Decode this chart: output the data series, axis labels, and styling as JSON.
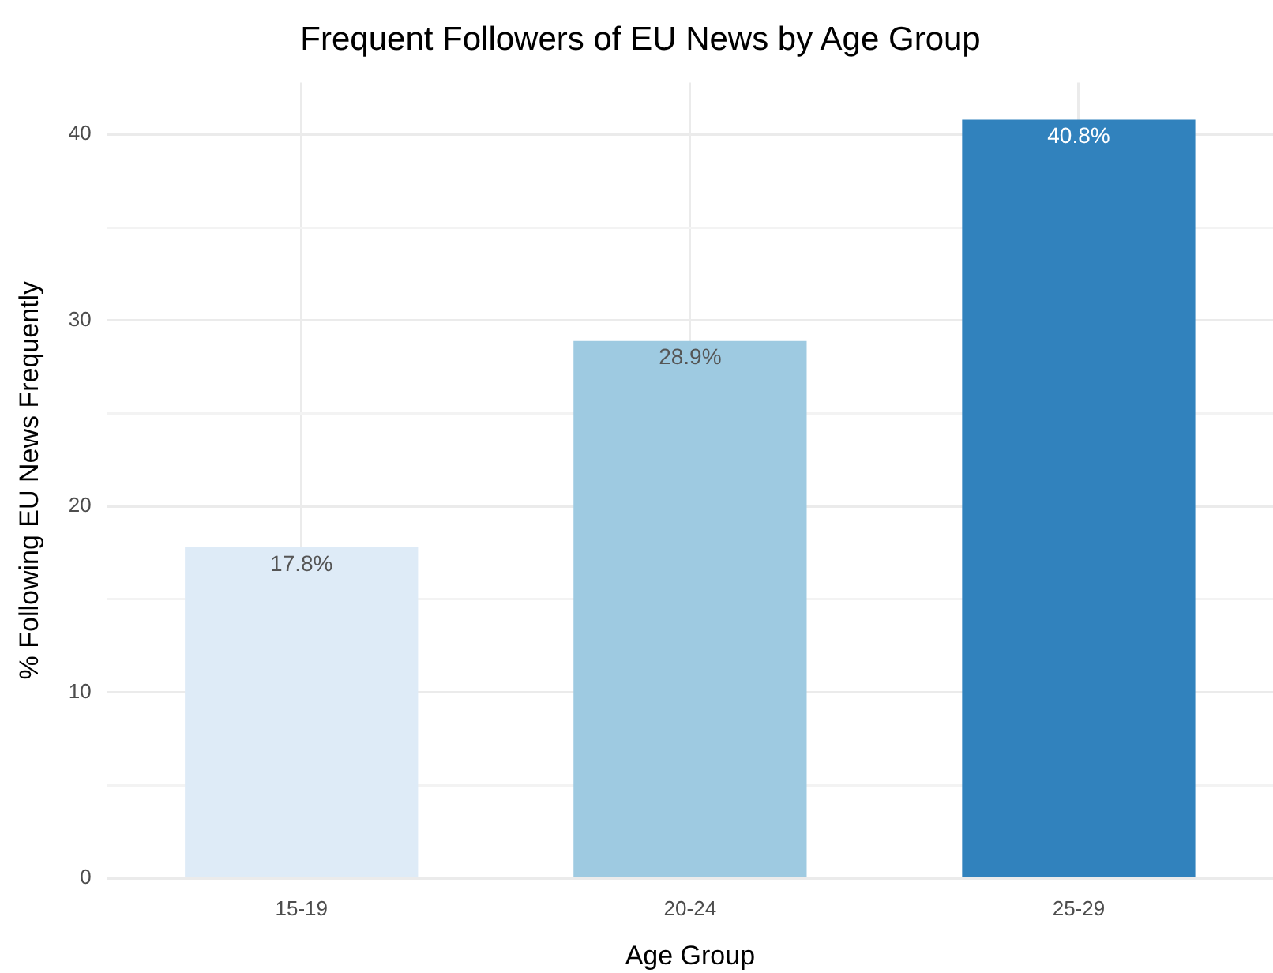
{
  "chart_data": {
    "type": "bar",
    "title": "Frequent Followers of EU News by Age Group",
    "xlabel": "Age Group",
    "ylabel": "% Following EU News Frequently",
    "categories": [
      "15-19",
      "20-24",
      "25-29"
    ],
    "values": [
      17.8,
      28.9,
      40.8
    ],
    "colors": [
      "#deebf7",
      "#9ecae1",
      "#3182bd"
    ],
    "value_labels": [
      "17.8%",
      "28.9%",
      "40.8%"
    ],
    "ylim": [
      0,
      42.8
    ],
    "yticks": [
      0,
      {
        "value": 5,
        "label": null
      },
      10,
      {
        "value": 15,
        "label": null
      },
      20,
      {
        "value": 25,
        "label": null
      },
      30,
      {
        "value": 35,
        "label": null
      },
      40
    ],
    "grid": true,
    "legend": false
  }
}
